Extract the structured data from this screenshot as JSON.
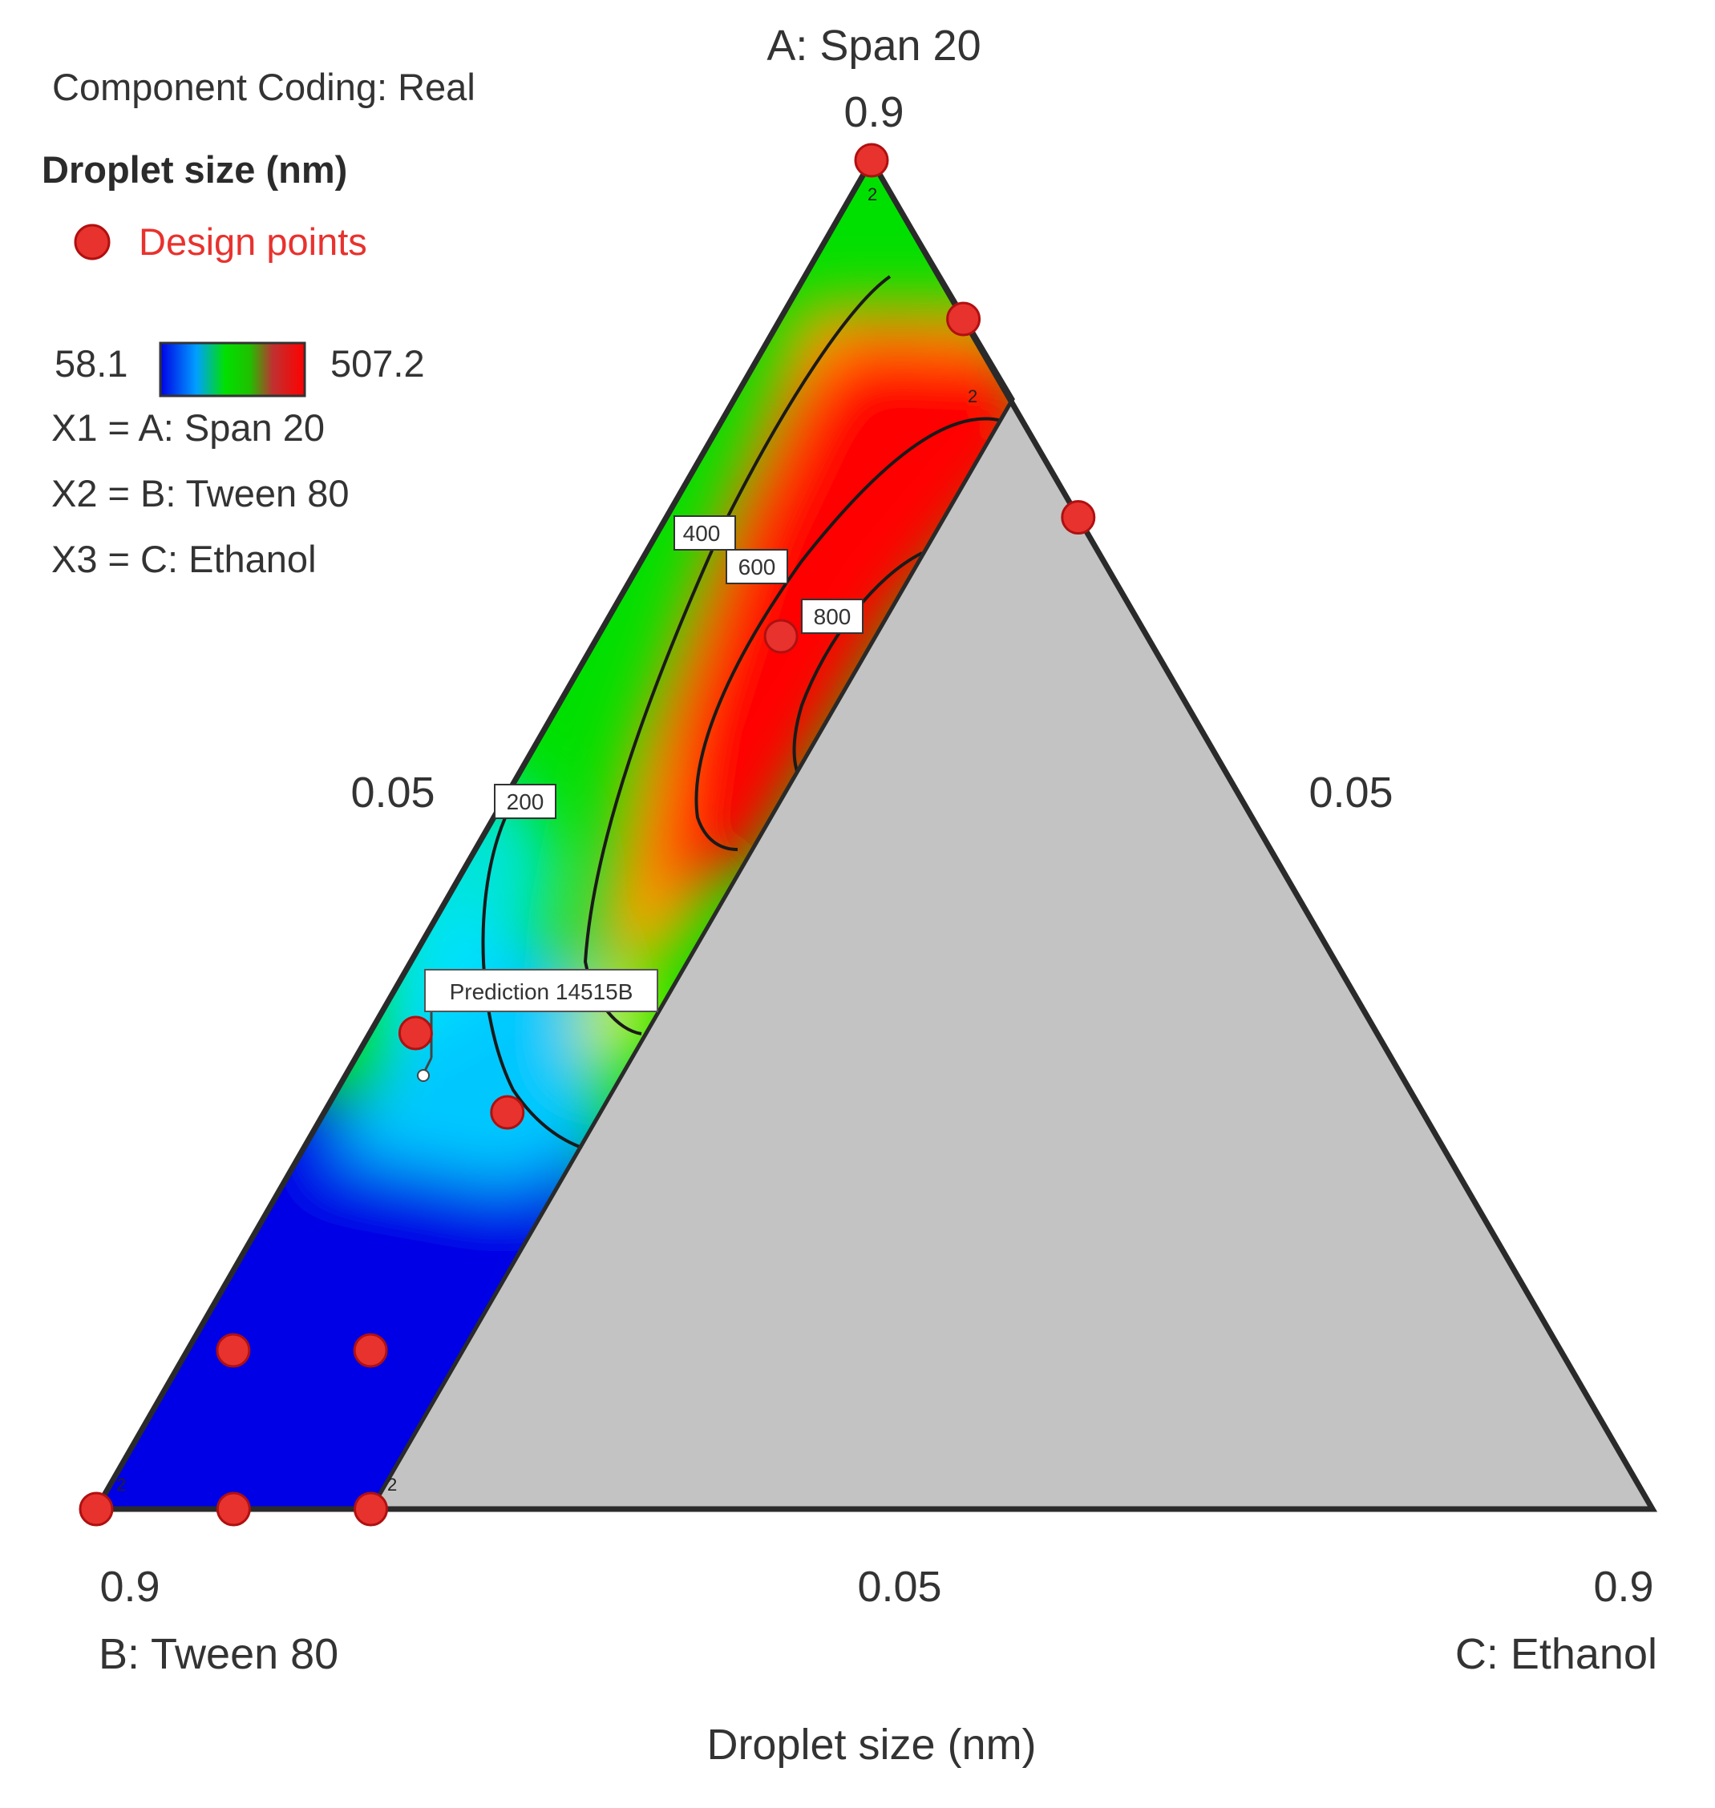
{
  "chart_data": {
    "type": "ternary-contour",
    "title": "Droplet size (nm)",
    "component_coding": "Component Coding: Real",
    "legend_title": "Droplet size (nm)",
    "legend_points": "Design points",
    "colorbar": {
      "min": "58.1",
      "max": "507.2",
      "colors": [
        "#0000e6",
        "#00e5ff",
        "#00e000",
        "#ff0000"
      ]
    },
    "components": [
      {
        "vertex": "top",
        "label": "A: Span 20",
        "high": "0.9",
        "mid_tick": "0.05",
        "factor": "X1 = A: Span 20"
      },
      {
        "vertex": "bottom-left",
        "label": "B: Tween 80",
        "high": "0.9",
        "mid_tick": "0.05",
        "factor": "X2 = B: Tween 80"
      },
      {
        "vertex": "bottom-right",
        "label": "C: Ethanol",
        "high": "0.9",
        "mid_tick": "0.05",
        "factor": "X3 = C: Ethanol"
      }
    ],
    "contour_labels": [
      "200",
      "400",
      "600",
      "800"
    ],
    "prediction_label": "Prediction 14515B",
    "replicate_marker": "2",
    "design_points": [
      {
        "A": 0.9,
        "B": 0.05,
        "C": 0.05,
        "replicates": 2
      },
      {
        "A": 0.8,
        "B": 0.05,
        "C": 0.15
      },
      {
        "A": 0.675,
        "B": 0.05,
        "C": 0.275,
        "replicates": 2
      },
      {
        "A": 0.6,
        "B": 0.25,
        "C": 0.15
      },
      {
        "A": 0.35,
        "B": 0.575,
        "C": 0.075
      },
      {
        "A": 0.3,
        "B": 0.55,
        "C": 0.15
      },
      {
        "A": 0.15,
        "B": 0.775,
        "C": 0.075
      },
      {
        "A": 0.15,
        "B": 0.7,
        "C": 0.15
      },
      {
        "A": 0.05,
        "B": 0.9,
        "C": 0.05,
        "replicates": 2
      },
      {
        "A": 0.05,
        "B": 0.825,
        "C": 0.125
      },
      {
        "A": 0.05,
        "B": 0.75,
        "C": 0.2,
        "replicates": 2
      }
    ],
    "constraint": "C <= 0.275 (region with higher Ethanol not explored, shown gray)"
  }
}
